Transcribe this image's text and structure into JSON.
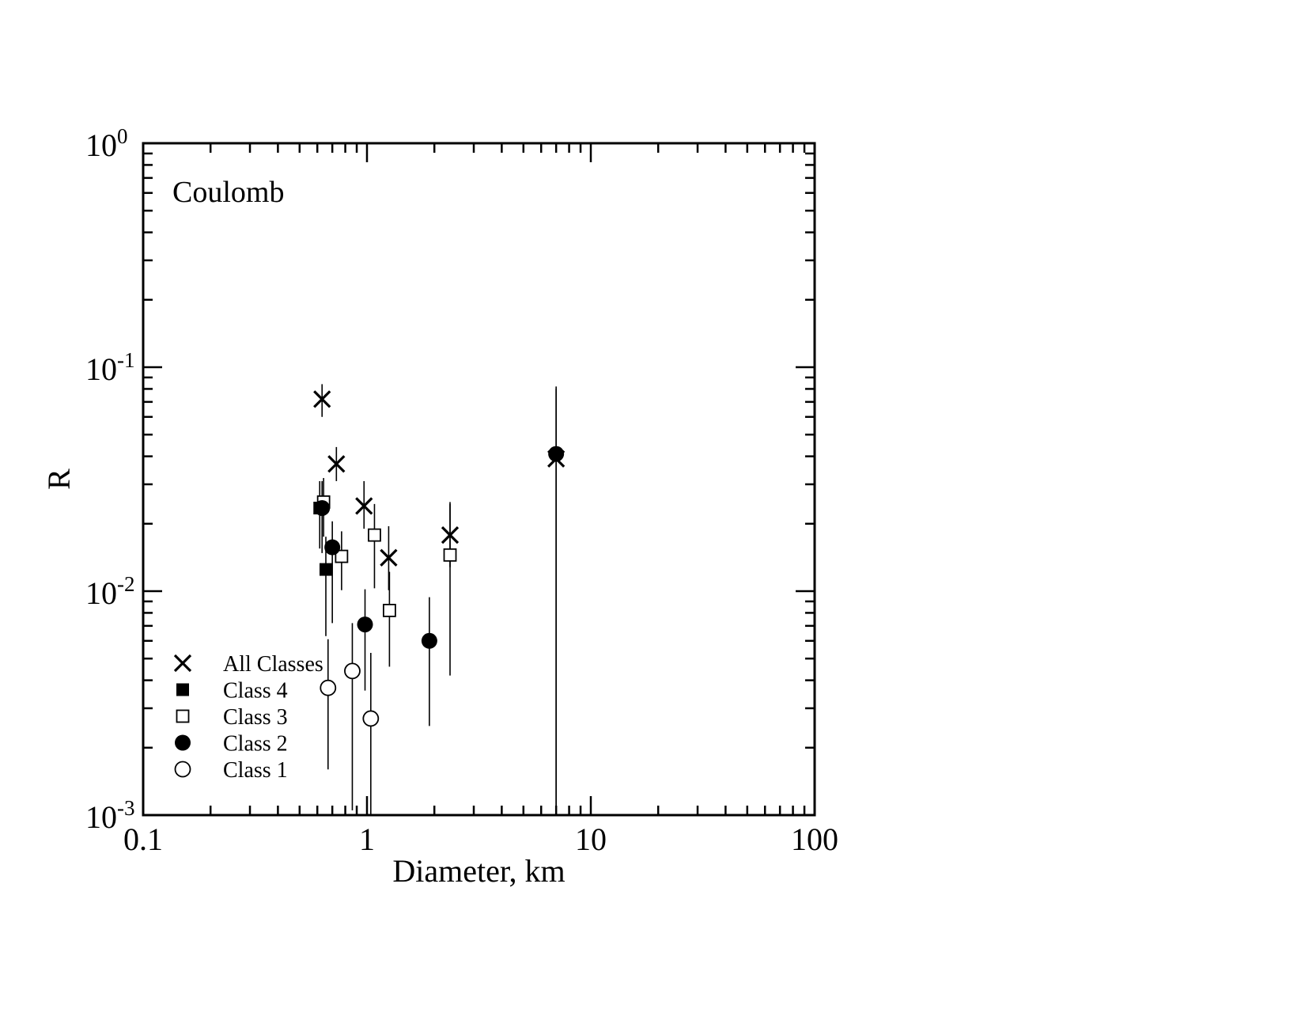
{
  "chart_data": {
    "type": "scatter",
    "annotation": "Coulomb",
    "xlabel": "Diameter, km",
    "ylabel": "R",
    "x_scale": "log",
    "y_scale": "log",
    "xlim": [
      0.1,
      100
    ],
    "ylim": [
      0.001,
      1
    ],
    "x_tick_labels": [
      {
        "value": 0.1,
        "label": "0.1"
      },
      {
        "value": 1,
        "label": "1"
      },
      {
        "value": 10,
        "label": "10"
      },
      {
        "value": 100,
        "label": "100"
      }
    ],
    "y_tick_labels": [
      {
        "value": 1,
        "base": "10",
        "exp": "0"
      },
      {
        "value": 0.1,
        "base": "10",
        "exp": "-1"
      },
      {
        "value": 0.01,
        "base": "10",
        "exp": "-2"
      },
      {
        "value": 0.001,
        "base": "10",
        "exp": "-3"
      }
    ],
    "legend_position": "bottom-left",
    "grid": false,
    "series": [
      {
        "name": "All Classes",
        "marker": "x",
        "points": [
          {
            "x": 0.63,
            "y": 0.072,
            "ylo": 0.06,
            "yhi": 0.084
          },
          {
            "x": 0.73,
            "y": 0.037,
            "ylo": 0.031,
            "yhi": 0.044
          },
          {
            "x": 0.97,
            "y": 0.024,
            "ylo": 0.019,
            "yhi": 0.031
          },
          {
            "x": 1.25,
            "y": 0.0141,
            "ylo": 0.0101,
            "yhi": 0.0195
          },
          {
            "x": 2.35,
            "y": 0.0178,
            "ylo": 0.0128,
            "yhi": 0.025
          },
          {
            "x": 7.0,
            "y": 0.039,
            "ylo": 0.001,
            "yhi": 0.08
          }
        ]
      },
      {
        "name": "Class 4",
        "marker": "filled-square",
        "points": [
          {
            "x": 0.615,
            "y": 0.0235,
            "ylo": 0.0155,
            "yhi": 0.031
          },
          {
            "x": 0.655,
            "y": 0.0125,
            "ylo": 0.0063,
            "yhi": 0.0175
          }
        ]
      },
      {
        "name": "Class 3",
        "marker": "open-square",
        "points": [
          {
            "x": 0.64,
            "y": 0.025,
            "ylo": 0.0175,
            "yhi": 0.032
          },
          {
            "x": 0.77,
            "y": 0.0143,
            "ylo": 0.0101,
            "yhi": 0.0185
          },
          {
            "x": 1.08,
            "y": 0.0178,
            "ylo": 0.0103,
            "yhi": 0.0245
          },
          {
            "x": 1.26,
            "y": 0.0082,
            "ylo": 0.0046,
            "yhi": 0.0122
          },
          {
            "x": 2.35,
            "y": 0.0145,
            "ylo": 0.0042,
            "yhi": 0.0245
          }
        ]
      },
      {
        "name": "Class 2",
        "marker": "filled-circle",
        "points": [
          {
            "x": 0.63,
            "y": 0.0235,
            "ylo": 0.0148,
            "yhi": 0.031
          },
          {
            "x": 0.7,
            "y": 0.0157,
            "ylo": 0.0072,
            "yhi": 0.0205
          },
          {
            "x": 0.98,
            "y": 0.0071,
            "ylo": 0.0036,
            "yhi": 0.0102
          },
          {
            "x": 1.9,
            "y": 0.006,
            "ylo": 0.0025,
            "yhi": 0.0094
          },
          {
            "x": 7.0,
            "y": 0.041,
            "ylo": 0.001,
            "yhi": 0.082
          }
        ]
      },
      {
        "name": "Class 1",
        "marker": "open-circle",
        "points": [
          {
            "x": 0.67,
            "y": 0.0037,
            "ylo": 0.0016,
            "yhi": 0.0061
          },
          {
            "x": 0.86,
            "y": 0.0044,
            "ylo": 0.00105,
            "yhi": 0.0072
          },
          {
            "x": 1.04,
            "y": 0.0027,
            "ylo": 0.001,
            "yhi": 0.0053
          }
        ]
      }
    ]
  }
}
